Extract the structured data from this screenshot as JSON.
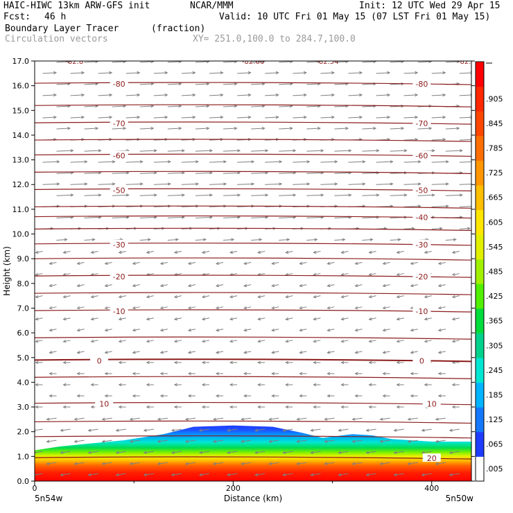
{
  "header": {
    "model": "HAIC-HIWC 13km ARW-GFS init",
    "org": "NCAR/MMM",
    "init": "Init: 12 UTC Wed 29 Apr 15",
    "fcst_label": "Fcst:",
    "fcst_value": "46 h",
    "valid": "Valid: 10 UTC Fri 01 May 15 (07 LST Fri 01 May 15)",
    "field": "Boundary Layer Tracer",
    "units": "(fraction)",
    "overlay": "Circulation vectors",
    "xy": "XY= 251.0,100.0 to 284.7,100.0"
  },
  "chart_data": {
    "type": "heatmap",
    "title": "Boundary Layer Tracer",
    "units": "(fraction)",
    "xlabel": "Distance (km)",
    "ylabel": "Height (km)",
    "xlim": [
      0,
      440
    ],
    "ylim": [
      0,
      17
    ],
    "x_ticks": [
      0,
      200,
      400
    ],
    "y_ticks": [
      "0.0",
      "1.0",
      "2.0",
      "3.0",
      "4.0",
      "5.0",
      "6.0",
      "7.0",
      "8.0",
      "9.0",
      "10.0",
      "11.0",
      "12.0",
      "13.0",
      "14.0",
      "15.0",
      "16.0",
      "17.0"
    ],
    "x_end_labels": {
      "left": "5n54w",
      "right": "5n50w"
    },
    "colorbar_ticks": [
      ".005",
      ".065",
      ".125",
      ".185",
      ".245",
      ".305",
      ".365",
      ".425",
      ".485",
      ".545",
      ".605",
      ".665",
      ".725",
      ".785",
      ".845",
      ".905"
    ],
    "colorbar_colors": [
      "#ffffff",
      "#1e3cff",
      "#1478ff",
      "#00b4ff",
      "#00e6d2",
      "#00d28c",
      "#00dc3c",
      "#50f000",
      "#a0f000",
      "#e1f000",
      "#ffe600",
      "#ffbe00",
      "#ff9600",
      "#ff6e00",
      "#ff4600",
      "#ff2800",
      "#ff0000"
    ],
    "tracer_top_km": [
      [
        0,
        1.25
      ],
      [
        25,
        1.4
      ],
      [
        50,
        1.5
      ],
      [
        90,
        1.65
      ],
      [
        130,
        1.9
      ],
      [
        160,
        2.2
      ],
      [
        200,
        2.25
      ],
      [
        240,
        2.2
      ],
      [
        270,
        1.95
      ],
      [
        290,
        1.75
      ],
      [
        320,
        1.9
      ],
      [
        340,
        1.85
      ],
      [
        360,
        1.7
      ],
      [
        400,
        1.6
      ],
      [
        440,
        1.6
      ]
    ],
    "isotherms": [
      {
        "label": "-80",
        "label_x_km": [
          85,
          390
        ],
        "y_km": 16.1
      },
      {
        "label": "-70",
        "label_x_km": [
          85,
          390
        ],
        "y_km": 14.5
      },
      {
        "label": "-60",
        "label_x_km": [
          85,
          390
        ],
        "y_km": 13.2
      },
      {
        "label": "-50",
        "label_x_km": [
          85,
          390
        ],
        "y_km": 11.8
      },
      {
        "label": "-40",
        "label_x_km": [
          390
        ],
        "y_km": 10.7
      },
      {
        "label": "-30",
        "label_x_km": [
          85,
          390
        ],
        "y_km": 9.6
      },
      {
        "label": "-20",
        "label_x_km": [
          85,
          390
        ],
        "y_km": 8.3
      },
      {
        "label": "-10",
        "label_x_km": [
          85,
          390
        ],
        "y_km": 6.9
      },
      {
        "label": "0",
        "label_x_km": [
          65,
          390
        ],
        "y_km": 4.9
      },
      {
        "label": "10",
        "label_x_km": [
          70,
          400
        ],
        "y_km": 3.15
      },
      {
        "label": "20",
        "label_x_km": [
          400
        ],
        "y_km": 0.95
      }
    ],
    "extra_isotherm_km": [
      15.2,
      13.8,
      12.5,
      11.1,
      10.2,
      9.0,
      7.6,
      5.8,
      4.2,
      2.4,
      1.8
    ],
    "top_labels": [
      {
        "label": "-82.8",
        "x_km": 40
      },
      {
        "label": "-82.66",
        "x_km": 220
      },
      {
        "label": "-82.54",
        "x_km": 295
      },
      {
        "label": "-82.5",
        "x_km": 435
      }
    ],
    "vector_colors": {
      "vectors": "#7f7f7f",
      "isotherm": "#8b1a1a"
    }
  }
}
